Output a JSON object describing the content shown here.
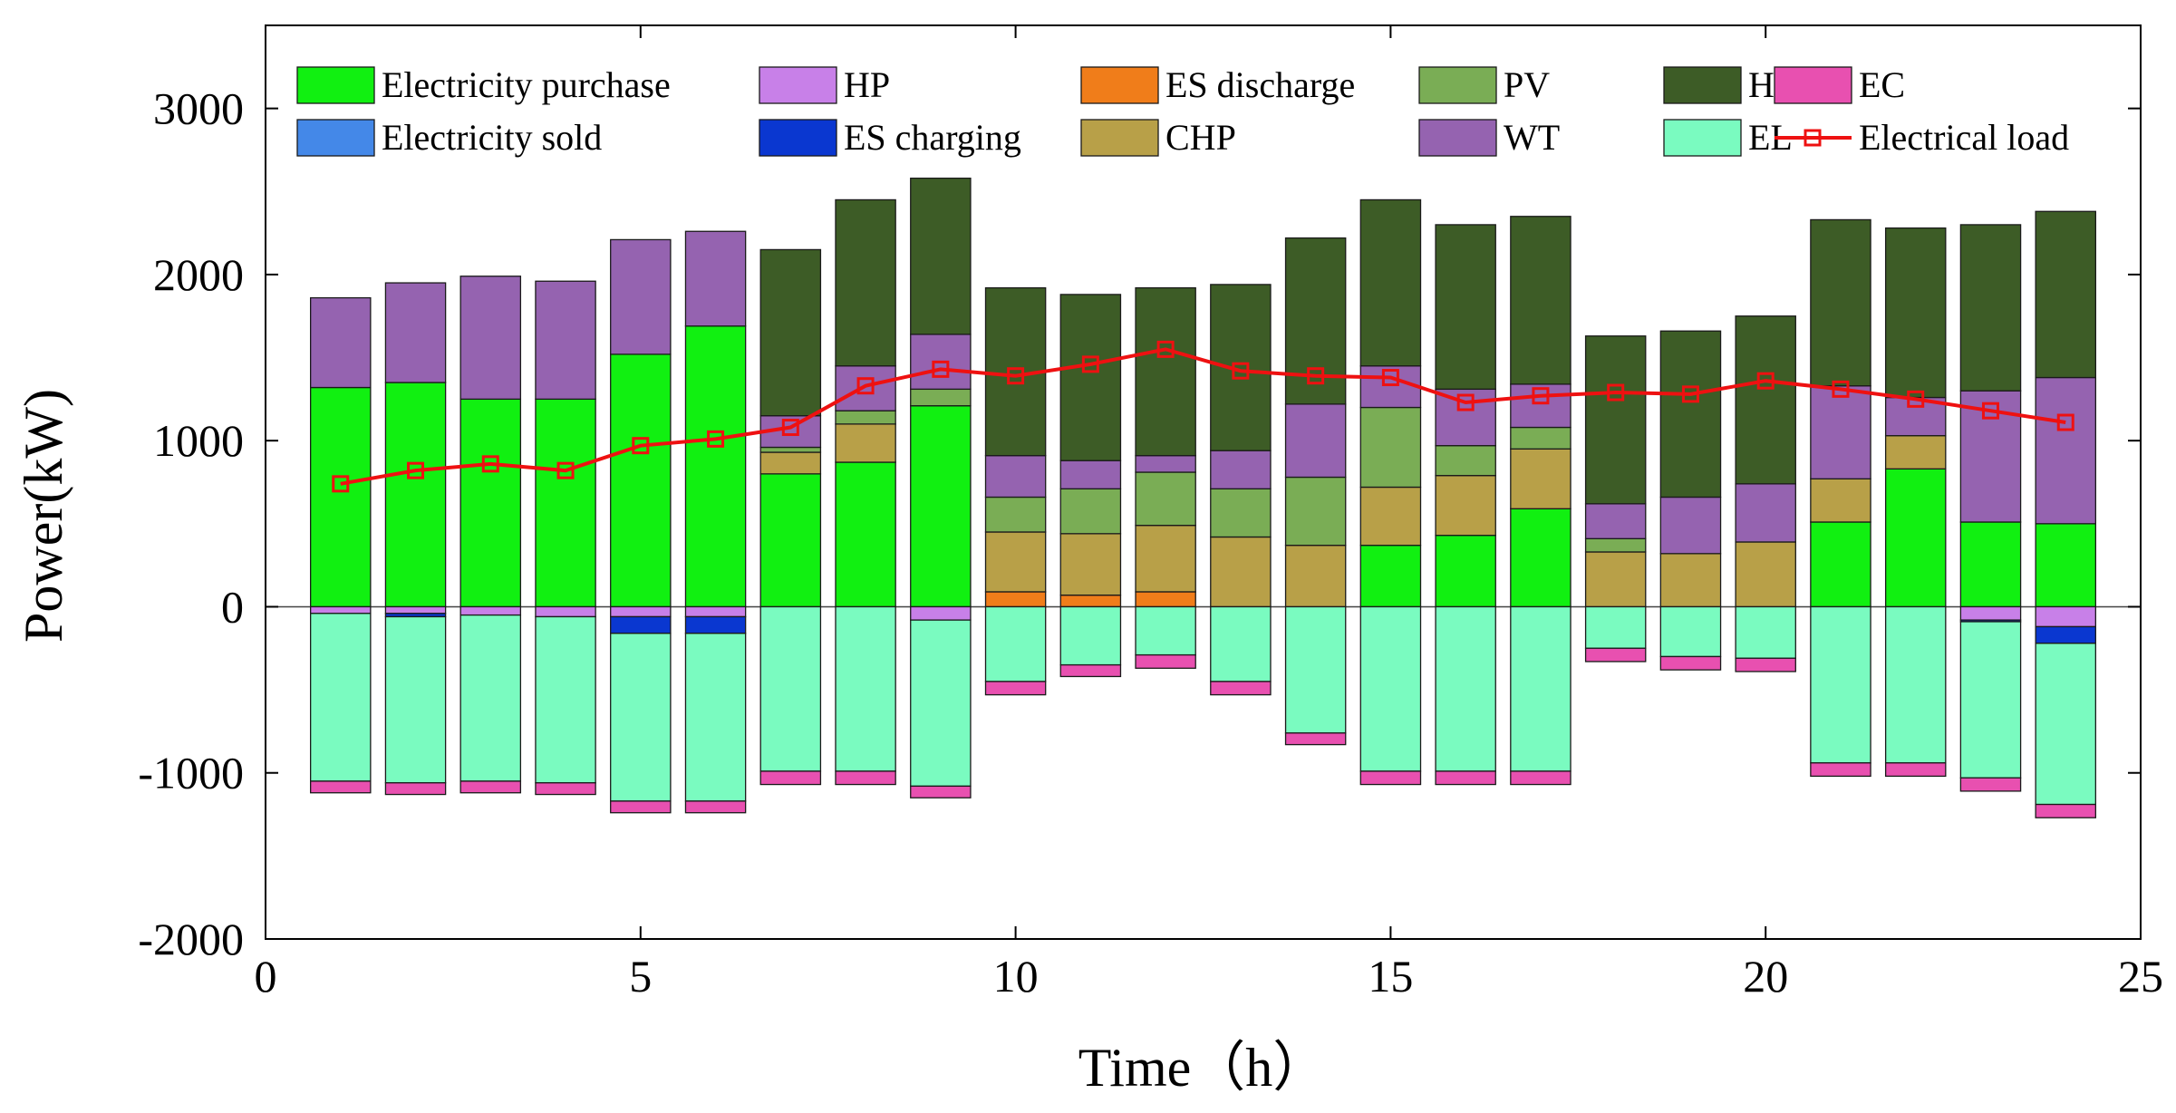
{
  "chart_data": {
    "type": "bar",
    "stacked": true,
    "title": "",
    "xlabel": "Time（h）",
    "ylabel": "Power(kW)",
    "xlim": [
      0,
      25
    ],
    "ylim": [
      -2000,
      3500
    ],
    "xticks": [
      0,
      5,
      10,
      15,
      20,
      25
    ],
    "yticks": [
      -2000,
      -1000,
      0,
      1000,
      2000,
      3000
    ],
    "x": [
      1,
      2,
      3,
      4,
      5,
      6,
      7,
      8,
      9,
      10,
      11,
      12,
      13,
      14,
      15,
      16,
      17,
      18,
      19,
      20,
      21,
      22,
      23,
      24
    ],
    "positive_series": [
      {
        "name": "ES discharge",
        "color": "#F07D1A",
        "values": [
          0,
          0,
          0,
          0,
          0,
          0,
          0,
          0,
          0,
          90,
          70,
          90,
          0,
          0,
          0,
          0,
          0,
          0,
          0,
          0,
          0,
          0,
          0,
          0
        ]
      },
      {
        "name": "Electricity purchase",
        "color": "#11F011",
        "values": [
          1320,
          1350,
          1250,
          1250,
          1520,
          1690,
          800,
          870,
          1210,
          0,
          0,
          0,
          0,
          0,
          370,
          430,
          590,
          0,
          0,
          0,
          510,
          830,
          510,
          500
        ]
      },
      {
        "name": "CHP",
        "color": "#B8A048",
        "values": [
          0,
          0,
          0,
          0,
          0,
          0,
          130,
          230,
          0,
          360,
          370,
          400,
          420,
          370,
          350,
          360,
          360,
          330,
          320,
          390,
          260,
          200,
          0,
          0
        ]
      },
      {
        "name": "PV",
        "color": "#7AAD55",
        "values": [
          0,
          0,
          0,
          0,
          0,
          0,
          30,
          80,
          100,
          210,
          270,
          320,
          290,
          410,
          480,
          180,
          130,
          80,
          0,
          0,
          0,
          0,
          0,
          0
        ]
      },
      {
        "name": "WT",
        "color": "#9563B0",
        "values": [
          540,
          600,
          740,
          710,
          690,
          570,
          190,
          270,
          330,
          250,
          170,
          100,
          230,
          440,
          250,
          340,
          260,
          210,
          340,
          350,
          560,
          230,
          790,
          880
        ]
      },
      {
        "name": "HFG",
        "color": "#3D5C26",
        "values": [
          0,
          0,
          0,
          0,
          0,
          0,
          1000,
          1000,
          940,
          1010,
          1000,
          1010,
          1000,
          1000,
          1000,
          990,
          1010,
          1010,
          1000,
          1010,
          1000,
          1020,
          1000,
          1000
        ]
      }
    ],
    "negative_series": [
      {
        "name": "HP",
        "color": "#C880E8",
        "values": [
          -40,
          -40,
          -50,
          -60,
          -60,
          -60,
          0,
          0,
          -80,
          0,
          0,
          0,
          0,
          0,
          0,
          0,
          0,
          0,
          0,
          0,
          0,
          0,
          -80,
          -120
        ]
      },
      {
        "name": "ES charging",
        "color": "#0A37D0",
        "values": [
          0,
          -20,
          0,
          0,
          -100,
          -100,
          0,
          0,
          0,
          0,
          0,
          0,
          0,
          0,
          0,
          0,
          0,
          0,
          0,
          0,
          0,
          0,
          -10,
          -100
        ]
      },
      {
        "name": "Electricity sold",
        "color": "#4488E8",
        "values": [
          0,
          0,
          0,
          0,
          0,
          0,
          0,
          0,
          0,
          0,
          0,
          0,
          0,
          0,
          0,
          0,
          0,
          0,
          0,
          0,
          0,
          0,
          0,
          0
        ]
      },
      {
        "name": "EL",
        "color": "#7AFBC0",
        "values": [
          -1010,
          -1000,
          -1000,
          -1000,
          -1010,
          -1010,
          -990,
          -990,
          -1000,
          -450,
          -350,
          -290,
          -450,
          -760,
          -990,
          -990,
          -990,
          -250,
          -300,
          -310,
          -940,
          -940,
          -940,
          -970
        ]
      },
      {
        "name": "EC",
        "color": "#E850B0",
        "values": [
          -70,
          -70,
          -70,
          -70,
          -70,
          -70,
          -80,
          -80,
          -70,
          -80,
          -70,
          -80,
          -80,
          -70,
          -80,
          -80,
          -80,
          -80,
          -80,
          -80,
          -80,
          -80,
          -80,
          -80
        ]
      }
    ],
    "line_series": [
      {
        "name": "Electrical load",
        "color": "#EE1111",
        "values": [
          740,
          820,
          860,
          820,
          970,
          1010,
          1080,
          1330,
          1430,
          1390,
          1460,
          1550,
          1420,
          1390,
          1380,
          1230,
          1270,
          1290,
          1280,
          1360,
          1310,
          1250,
          1180,
          1110
        ]
      }
    ],
    "legend": {
      "placement": "top",
      "rows": [
        [
          "Electricity purchase",
          "HP",
          "ES discharge",
          "PV",
          "HFG",
          "EC"
        ],
        [
          "Electricity sold",
          "ES charging",
          "CHP",
          "WT",
          "EL",
          "Electrical load"
        ]
      ]
    }
  }
}
